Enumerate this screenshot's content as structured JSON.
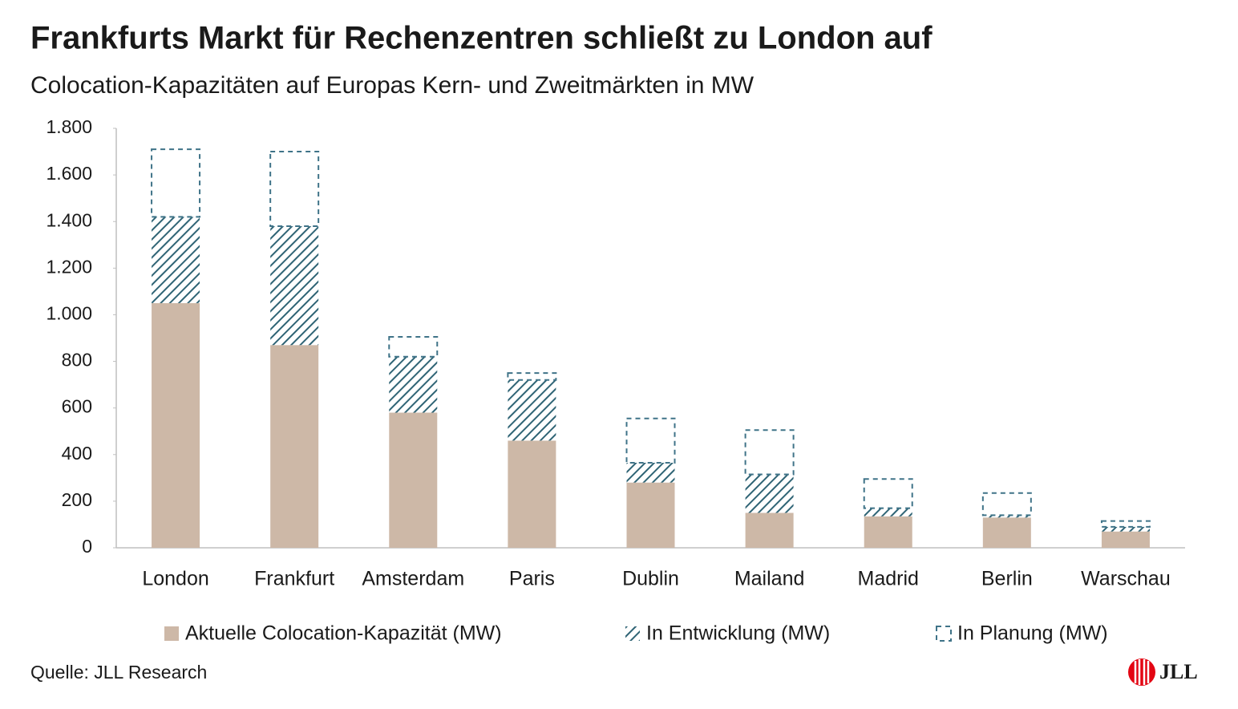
{
  "chart_data": {
    "type": "stacked_bar",
    "title": "Frankfurts Markt für Rechenzentren schließt zu London auf",
    "subtitle": "Colocation-Kapazitäten auf Europas Kern- und Zweitmärkten in MW",
    "categories": [
      "London",
      "Frankfurt",
      "Amsterdam",
      "Paris",
      "Dublin",
      "Mailand",
      "Madrid",
      "Berlin",
      "Warschau"
    ],
    "series": [
      {
        "name": "Aktuelle Colocation-Kapazität (MW)",
        "color": "#cdb8a7",
        "style": "solid",
        "values": [
          1050,
          870,
          580,
          460,
          280,
          150,
          135,
          130,
          70
        ]
      },
      {
        "name": "In Entwicklung (MW)",
        "color": "#2f6475",
        "style": "hatch",
        "values": [
          370,
          510,
          240,
          260,
          85,
          165,
          35,
          10,
          20
        ]
      },
      {
        "name": "In Planung (MW)",
        "color": "#3f7388",
        "style": "dashed",
        "values": [
          290,
          320,
          85,
          30,
          190,
          190,
          125,
          95,
          25
        ]
      }
    ],
    "ylim": [
      0,
      1800
    ],
    "yticks": [
      0,
      200,
      400,
      600,
      800,
      {
        "value": 1000,
        "label": "1.000"
      },
      {
        "value": 1200,
        "label": "1.200"
      },
      {
        "value": 1400,
        "label": "1.400"
      },
      {
        "value": 1600,
        "label": "1.600"
      },
      {
        "value": 1800,
        "label": "1.800"
      }
    ],
    "grid": false,
    "legend": "bottom",
    "source": "Quelle: JLL Research",
    "logo": "JLL"
  }
}
